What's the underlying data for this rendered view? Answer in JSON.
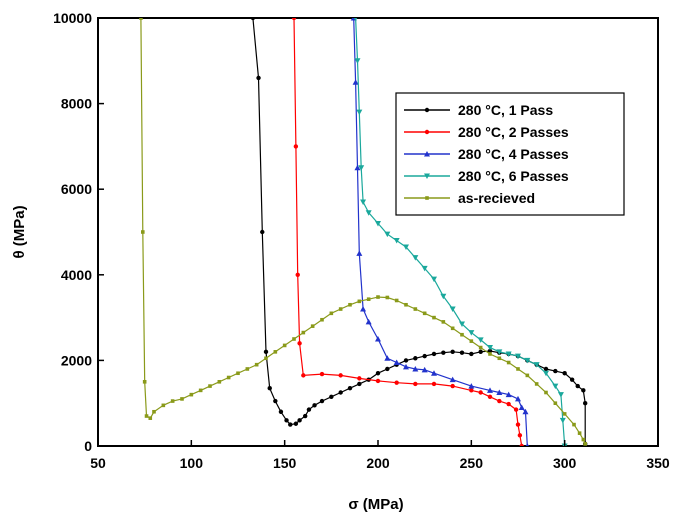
{
  "chart_data": {
    "type": "line",
    "xlabel": "σ (MPa)",
    "ylabel": "θ (MPa)",
    "xlim": [
      50,
      350
    ],
    "ylim": [
      0,
      10000
    ],
    "xticks": [
      50,
      100,
      150,
      200,
      250,
      300,
      350
    ],
    "yticks": [
      0,
      2000,
      4000,
      6000,
      8000,
      10000
    ],
    "grid": false,
    "legend_position": "top-right",
    "series": [
      {
        "name": "280 °C, 1 Pass",
        "color": "#000000",
        "marker": "circle",
        "x": [
          133,
          136,
          138,
          140,
          142,
          145,
          148,
          151,
          153,
          156,
          158,
          161,
          163,
          166,
          170,
          175,
          180,
          185,
          190,
          195,
          200,
          205,
          210,
          215,
          220,
          225,
          230,
          235,
          240,
          245,
          250,
          255,
          260,
          265,
          270,
          275,
          280,
          285,
          290,
          295,
          300,
          304,
          307,
          310,
          311,
          311
        ],
        "y": [
          10000,
          8600,
          5000,
          2200,
          1350,
          1050,
          800,
          600,
          500,
          520,
          600,
          700,
          850,
          950,
          1050,
          1150,
          1250,
          1350,
          1450,
          1550,
          1700,
          1800,
          1900,
          2000,
          2050,
          2100,
          2150,
          2180,
          2200,
          2180,
          2150,
          2200,
          2220,
          2180,
          2150,
          2100,
          2000,
          1900,
          1800,
          1750,
          1700,
          1550,
          1400,
          1300,
          1000,
          50
        ]
      },
      {
        "name": "280 °C, 2 Passes",
        "color": "#ff0000",
        "marker": "circle",
        "x": [
          155,
          156,
          157,
          158,
          160,
          170,
          180,
          190,
          200,
          210,
          220,
          230,
          240,
          250,
          255,
          260,
          265,
          270,
          274,
          275,
          276,
          277
        ],
        "y": [
          10000,
          7000,
          4000,
          2400,
          1650,
          1680,
          1650,
          1580,
          1520,
          1480,
          1450,
          1450,
          1400,
          1300,
          1250,
          1150,
          1050,
          980,
          850,
          500,
          250,
          0
        ]
      },
      {
        "name": "280 °C, 4 Passes",
        "color": "#2233cc",
        "marker": "triangle-up",
        "x": [
          187,
          188,
          189,
          190,
          192,
          195,
          200,
          205,
          210,
          215,
          220,
          225,
          230,
          240,
          250,
          260,
          265,
          270,
          275,
          277,
          279,
          280
        ],
        "y": [
          10000,
          8500,
          6500,
          4500,
          3200,
          2900,
          2500,
          2050,
          1950,
          1850,
          1800,
          1780,
          1700,
          1550,
          1400,
          1300,
          1250,
          1200,
          1100,
          900,
          800,
          0
        ]
      },
      {
        "name": "280 °C, 6 Passes",
        "color": "#1aa89c",
        "marker": "triangle-down",
        "x": [
          188,
          189,
          190,
          191,
          192,
          195,
          200,
          205,
          210,
          215,
          220,
          225,
          230,
          235,
          240,
          245,
          250,
          255,
          260,
          265,
          270,
          275,
          280,
          285,
          290,
          295,
          298,
          299,
          300
        ],
        "y": [
          10000,
          9000,
          7800,
          6500,
          5700,
          5450,
          5200,
          4950,
          4800,
          4650,
          4400,
          4150,
          3900,
          3500,
          3200,
          2850,
          2650,
          2480,
          2300,
          2200,
          2150,
          2100,
          2000,
          1900,
          1700,
          1400,
          1200,
          600,
          0
        ]
      },
      {
        "name": "as-recieved",
        "color": "#8a9a1a",
        "marker": "dot",
        "x": [
          73,
          74,
          75,
          76,
          78,
          80,
          85,
          90,
          95,
          100,
          105,
          110,
          115,
          120,
          125,
          130,
          135,
          140,
          145,
          150,
          155,
          160,
          165,
          170,
          175,
          180,
          185,
          190,
          195,
          200,
          205,
          210,
          215,
          220,
          225,
          230,
          235,
          240,
          245,
          250,
          255,
          260,
          265,
          270,
          275,
          280,
          285,
          290,
          295,
          300,
          305,
          308,
          310,
          311
        ],
        "y": [
          10000,
          5000,
          1500,
          700,
          650,
          800,
          950,
          1050,
          1100,
          1200,
          1300,
          1400,
          1500,
          1600,
          1700,
          1800,
          1900,
          2050,
          2200,
          2350,
          2500,
          2650,
          2800,
          2950,
          3100,
          3200,
          3300,
          3380,
          3430,
          3480,
          3470,
          3400,
          3300,
          3200,
          3100,
          3000,
          2900,
          2750,
          2600,
          2450,
          2300,
          2150,
          2050,
          1950,
          1800,
          1650,
          1450,
          1250,
          1000,
          750,
          500,
          300,
          150,
          50
        ]
      }
    ]
  }
}
